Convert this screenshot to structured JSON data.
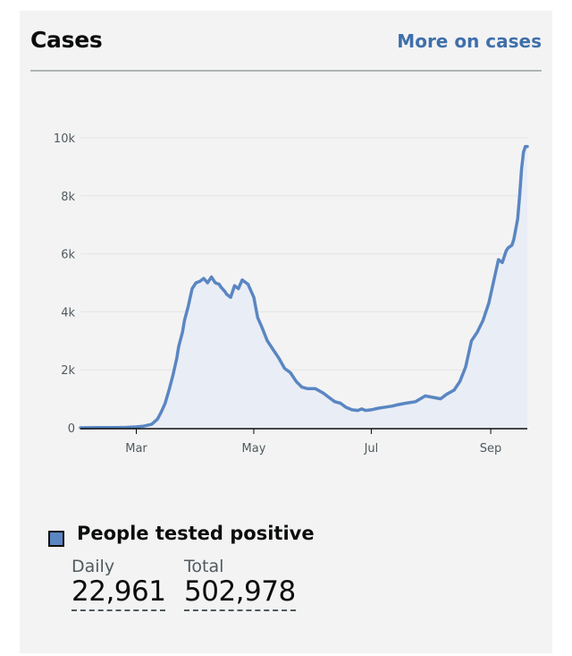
{
  "card": {
    "title": "Cases",
    "more_link": "More on cases"
  },
  "legend": {
    "label": "People tested positive",
    "color": "#5a86c2"
  },
  "stats": {
    "daily_label": "Daily",
    "daily_value": "22,961",
    "total_label": "Total",
    "total_value": "502,978"
  },
  "chart_data": {
    "type": "area",
    "title": "",
    "xlabel": "",
    "ylabel": "",
    "ylim": [
      0,
      10000
    ],
    "yticks": [
      0,
      2000,
      4000,
      6000,
      8000,
      10000
    ],
    "ytick_labels": [
      "0",
      "2k",
      "4k",
      "6k",
      "8k",
      "10k"
    ],
    "xlim_day_of_year": [
      31,
      263
    ],
    "xticks_day_of_year": [
      60,
      121,
      182,
      244
    ],
    "xtick_labels": [
      "Mar",
      "May",
      "Jul",
      "Sep"
    ],
    "line_color": "#5a86c2",
    "fill_color": "#e9edf6",
    "series": [
      {
        "name": "People tested positive",
        "x_day_of_year": [
          31,
          40,
          50,
          55,
          60,
          64,
          68,
          71,
          73,
          75,
          77,
          79,
          81,
          82,
          84,
          85,
          87,
          88,
          89,
          91,
          93,
          95,
          97,
          99,
          101,
          103,
          104,
          106,
          107,
          109,
          111,
          113,
          115,
          118,
          121,
          123,
          125,
          128,
          131,
          134,
          137,
          140,
          143,
          146,
          149,
          153,
          157,
          160,
          163,
          166,
          169,
          172,
          175,
          177,
          179,
          182,
          184,
          186,
          188,
          190,
          193,
          196,
          200,
          205,
          210,
          214,
          218,
          221,
          225,
          228,
          231,
          234,
          237,
          240,
          243,
          246,
          248,
          250,
          252,
          253,
          255,
          256,
          258,
          259,
          260,
          261,
          262,
          263
        ],
        "values": [
          0,
          5,
          10,
          15,
          30,
          60,
          120,
          300,
          550,
          850,
          1300,
          1800,
          2400,
          2800,
          3300,
          3700,
          4200,
          4500,
          4800,
          5000,
          5050,
          5150,
          5000,
          5200,
          5000,
          4950,
          4850,
          4700,
          4600,
          4500,
          4900,
          4800,
          5100,
          4950,
          4500,
          3800,
          3500,
          3000,
          2700,
          2400,
          2050,
          1900,
          1600,
          1400,
          1350,
          1350,
          1200,
          1050,
          900,
          850,
          700,
          620,
          600,
          650,
          600,
          620,
          650,
          680,
          700,
          720,
          750,
          800,
          850,
          900,
          1100,
          1050,
          1000,
          1150,
          1300,
          1600,
          2100,
          3000,
          3300,
          3700,
          4300,
          5200,
          5800,
          5700,
          6100,
          6200,
          6300,
          6500,
          7200,
          8000,
          8900,
          9500,
          9700,
          9700
        ]
      }
    ]
  }
}
